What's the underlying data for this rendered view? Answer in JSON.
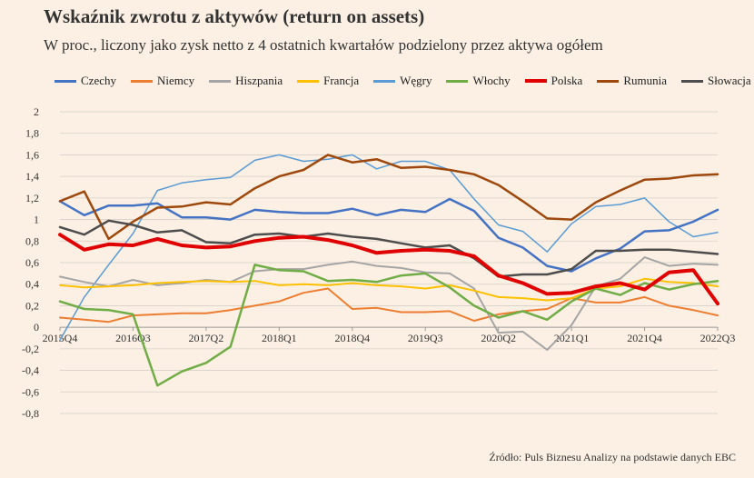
{
  "title": "Wskaźnik zwrotu z aktywów (return on assets)",
  "subtitle": "W proc., liczony jako zysk netto z 4 ostatnich kwartałów podzielony przez aktywa ogółem",
  "source": "Źródło: Puls Biznesu Analizy na podstawie danych EBC",
  "chart_data": {
    "type": "line",
    "title": "Wskaźnik zwrotu z aktywów (return on assets)",
    "subtitle": "W proc., liczony jako zysk netto z 4 ostatnich kwartałów podzielony przez aktywa ogółem",
    "xlabel": "",
    "ylabel": "",
    "ylim": [
      -0.8,
      2
    ],
    "yticks": [
      2,
      1.8,
      1.6,
      1.4,
      1.2,
      1,
      0.8,
      0.6,
      0.4,
      0.2,
      0,
      -0.2,
      -0.4,
      -0.6,
      -0.8
    ],
    "ytick_labels": [
      "2",
      "1,8",
      "1,6",
      "1,4",
      "1,2",
      "1",
      "0,8",
      "0,6",
      "0,4",
      "0,2",
      "0",
      "-0,2",
      "-0,4",
      "-0,6",
      "-0,8"
    ],
    "grid": true,
    "legend_position": "top",
    "categories": [
      "2015Q4",
      "2016Q1",
      "2016Q2",
      "2016Q3",
      "2016Q4",
      "2017Q1",
      "2017Q2",
      "2017Q3",
      "2017Q4",
      "2018Q1",
      "2018Q2",
      "2018Q3",
      "2018Q4",
      "2019Q1",
      "2019Q2",
      "2019Q3",
      "2019Q4",
      "2020Q1",
      "2020Q2",
      "2020Q3",
      "2020Q4",
      "2021Q1",
      "2021Q2",
      "2021Q3",
      "2021Q4",
      "2022Q1",
      "2022Q2",
      "2022Q3"
    ],
    "x_tick_labels": [
      {
        "index": 0,
        "label": "2015Q4"
      },
      {
        "index": 3,
        "label": "2016Q3"
      },
      {
        "index": 6,
        "label": "2017Q2"
      },
      {
        "index": 9,
        "label": "2018Q1"
      },
      {
        "index": 12,
        "label": "2018Q4"
      },
      {
        "index": 15,
        "label": "2019Q3"
      },
      {
        "index": 18,
        "label": "2020Q2"
      },
      {
        "index": 21,
        "label": "2021Q1"
      },
      {
        "index": 24,
        "label": "2021Q4"
      },
      {
        "index": 27,
        "label": "2022Q3"
      }
    ],
    "series": [
      {
        "name": "Czechy",
        "color": "#4472c4",
        "width": 2.5,
        "values": [
          1.17,
          1.04,
          1.13,
          1.13,
          1.15,
          1.02,
          1.02,
          1.0,
          1.09,
          1.07,
          1.06,
          1.06,
          1.1,
          1.04,
          1.09,
          1.07,
          1.19,
          1.08,
          0.83,
          0.74,
          0.57,
          0.52,
          0.64,
          0.73,
          0.89,
          0.9,
          0.98,
          1.09
        ]
      },
      {
        "name": "Niemcy",
        "color": "#ed7d31",
        "width": 2,
        "values": [
          0.09,
          0.07,
          0.05,
          0.11,
          0.12,
          0.13,
          0.13,
          0.16,
          0.2,
          0.24,
          0.32,
          0.36,
          0.17,
          0.18,
          0.14,
          0.14,
          0.15,
          0.06,
          0.12,
          0.15,
          0.17,
          0.27,
          0.23,
          0.23,
          0.28,
          0.2,
          0.16,
          0.11
        ]
      },
      {
        "name": "Hiszpania",
        "color": "#a5a5a5",
        "width": 2,
        "values": [
          0.47,
          0.42,
          0.38,
          0.44,
          0.39,
          0.41,
          0.44,
          0.42,
          0.52,
          0.54,
          0.54,
          0.58,
          0.61,
          0.57,
          0.55,
          0.51,
          0.5,
          0.36,
          -0.05,
          -0.04,
          -0.21,
          0.02,
          0.38,
          0.45,
          0.65,
          0.57,
          0.59,
          0.58
        ]
      },
      {
        "name": "Francja",
        "color": "#ffc000",
        "width": 2,
        "values": [
          0.39,
          0.37,
          0.38,
          0.39,
          0.41,
          0.42,
          0.43,
          0.42,
          0.43,
          0.39,
          0.4,
          0.39,
          0.41,
          0.39,
          0.38,
          0.36,
          0.39,
          0.34,
          0.28,
          0.27,
          0.25,
          0.27,
          0.36,
          0.38,
          0.45,
          0.42,
          0.41,
          0.38
        ]
      },
      {
        "name": "Węgry",
        "color": "#5b9bd5",
        "width": 1.5,
        "values": [
          -0.12,
          0.28,
          0.58,
          0.87,
          1.27,
          1.34,
          1.37,
          1.39,
          1.55,
          1.6,
          1.54,
          1.56,
          1.6,
          1.47,
          1.54,
          1.54,
          1.46,
          1.19,
          0.95,
          0.89,
          0.7,
          0.96,
          1.12,
          1.14,
          1.2,
          0.98,
          0.84,
          0.88
        ]
      },
      {
        "name": "Włochy",
        "color": "#70ad47",
        "width": 2.5,
        "values": [
          0.24,
          0.17,
          0.16,
          0.12,
          -0.54,
          -0.41,
          -0.33,
          -0.18,
          0.58,
          0.53,
          0.52,
          0.43,
          0.44,
          0.42,
          0.48,
          0.5,
          0.37,
          0.2,
          0.09,
          0.15,
          0.07,
          0.24,
          0.36,
          0.3,
          0.41,
          0.35,
          0.4,
          0.43
        ]
      },
      {
        "name": "Polska",
        "color": "#e00000",
        "width": 4,
        "values": [
          0.86,
          0.72,
          0.77,
          0.76,
          0.82,
          0.76,
          0.74,
          0.75,
          0.8,
          0.83,
          0.84,
          0.81,
          0.76,
          0.69,
          0.71,
          0.72,
          0.71,
          0.66,
          0.48,
          0.41,
          0.31,
          0.32,
          0.38,
          0.41,
          0.35,
          0.51,
          0.53,
          0.22
        ]
      },
      {
        "name": "Rumunia",
        "color": "#9e480e",
        "width": 2.5,
        "values": [
          1.17,
          1.26,
          0.82,
          0.98,
          1.11,
          1.12,
          1.16,
          1.14,
          1.29,
          1.4,
          1.46,
          1.6,
          1.53,
          1.56,
          1.48,
          1.49,
          1.46,
          1.42,
          1.32,
          1.17,
          1.01,
          1.0,
          1.16,
          1.27,
          1.37,
          1.38,
          1.41,
          1.42
        ]
      },
      {
        "name": "Słowacja",
        "color": "#4d4d4d",
        "width": 2.5,
        "values": [
          0.93,
          0.86,
          0.99,
          0.95,
          0.88,
          0.9,
          0.79,
          0.78,
          0.86,
          0.87,
          0.84,
          0.87,
          0.84,
          0.82,
          0.78,
          0.74,
          0.76,
          0.64,
          0.47,
          0.49,
          0.49,
          0.54,
          0.71,
          0.71,
          0.72,
          0.72,
          0.7,
          0.68
        ]
      }
    ]
  }
}
